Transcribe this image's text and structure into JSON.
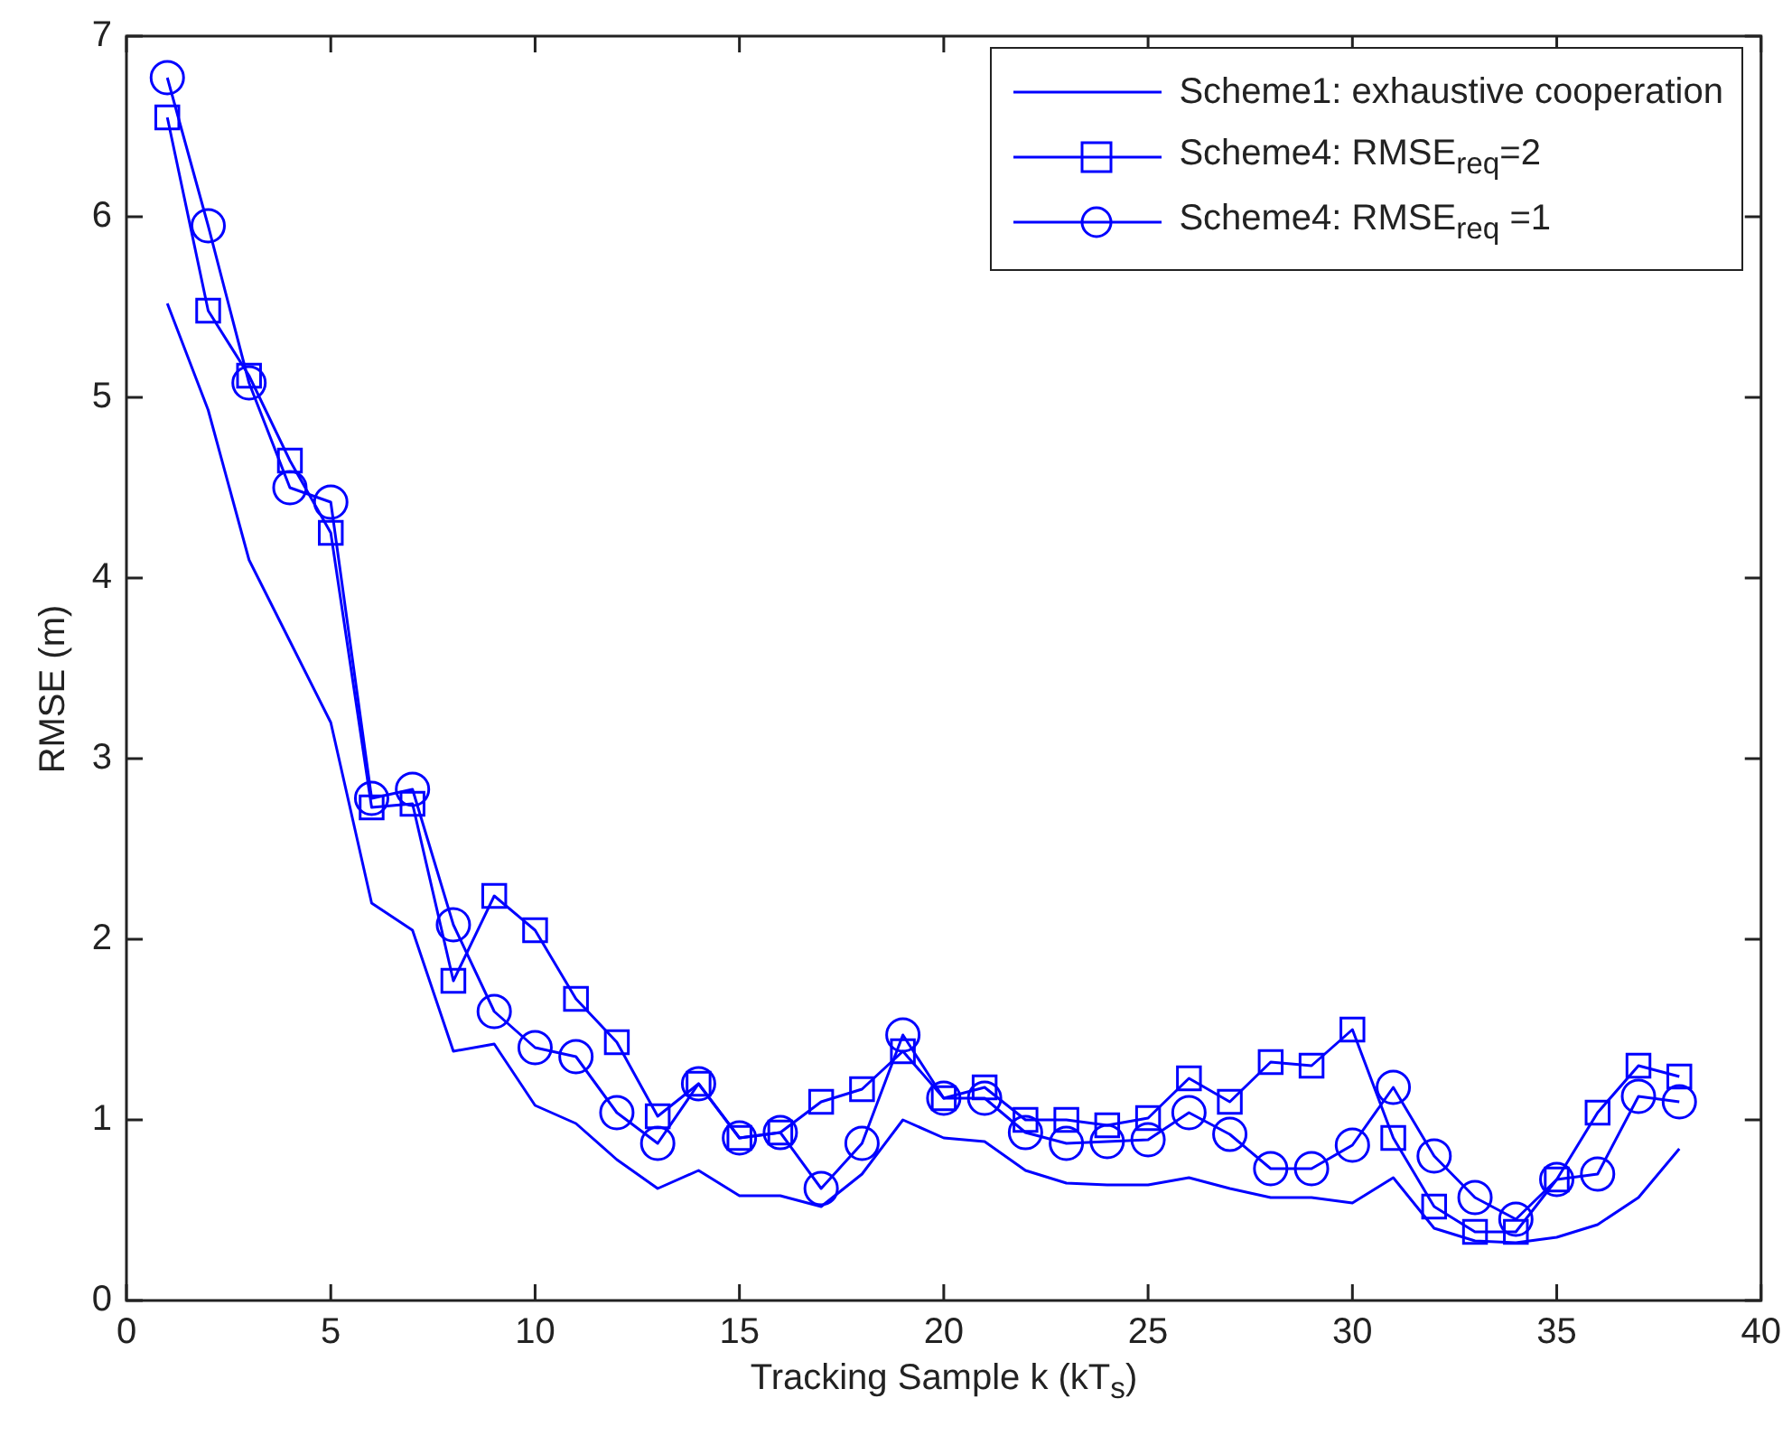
{
  "chart_data": {
    "type": "line",
    "xlabel": "Tracking Sample k (kT$_{s}$)",
    "ylabel": "RMSE (m)",
    "x": [
      1,
      2,
      3,
      4,
      5,
      6,
      7,
      8,
      9,
      10,
      11,
      12,
      13,
      14,
      15,
      16,
      17,
      18,
      19,
      20,
      21,
      22,
      23,
      24,
      25,
      26,
      27,
      28,
      29,
      30,
      31,
      32,
      33,
      34,
      35,
      36,
      37,
      38
    ],
    "xlim": [
      0,
      40
    ],
    "xticks": [
      0,
      5,
      10,
      15,
      20,
      25,
      30,
      35,
      40
    ],
    "ylim": [
      0,
      7
    ],
    "yticks": [
      0,
      1,
      2,
      3,
      4,
      5,
      6,
      7
    ],
    "grid": false,
    "legend": "top right",
    "line_style": "solid",
    "series": [
      {
        "name": "Scheme1: exhaustive cooperation",
        "color": "#0000ff",
        "marker": "none",
        "values": [
          5.52,
          4.93,
          4.1,
          3.65,
          3.2,
          2.2,
          2.05,
          1.38,
          1.42,
          1.08,
          0.98,
          0.78,
          0.62,
          0.72,
          0.58,
          0.58,
          0.52,
          0.7,
          1.0,
          0.9,
          0.88,
          0.72,
          0.65,
          0.64,
          0.64,
          0.68,
          0.62,
          0.57,
          0.57,
          0.54,
          0.68,
          0.4,
          0.33,
          0.32,
          0.35,
          0.42,
          0.57,
          0.84
        ]
      },
      {
        "name": "Scheme4: RMSE$_{req}$=2",
        "color": "#0000ff",
        "marker": "square",
        "values": [
          6.55,
          5.48,
          5.12,
          4.65,
          4.25,
          2.73,
          2.75,
          1.77,
          2.24,
          2.05,
          1.67,
          1.43,
          1.02,
          1.2,
          0.9,
          0.93,
          1.1,
          1.17,
          1.38,
          1.12,
          1.18,
          1.0,
          1.0,
          0.97,
          1.01,
          1.23,
          1.1,
          1.32,
          1.3,
          1.5,
          0.9,
          0.52,
          0.38,
          0.38,
          0.67,
          1.04,
          1.3,
          1.24
        ]
      },
      {
        "name": "Scheme4: RMSE$_{req}$ =1",
        "color": "#0000ff",
        "marker": "circle",
        "values": [
          6.77,
          5.95,
          5.08,
          4.5,
          4.42,
          2.78,
          2.83,
          2.08,
          1.6,
          1.4,
          1.35,
          1.04,
          0.87,
          1.2,
          0.9,
          0.93,
          0.62,
          0.87,
          1.47,
          1.12,
          1.12,
          0.93,
          0.87,
          0.88,
          0.89,
          1.04,
          0.92,
          0.73,
          0.73,
          0.86,
          1.18,
          0.8,
          0.57,
          0.45,
          0.67,
          0.7,
          1.13,
          1.1
        ]
      }
    ]
  }
}
